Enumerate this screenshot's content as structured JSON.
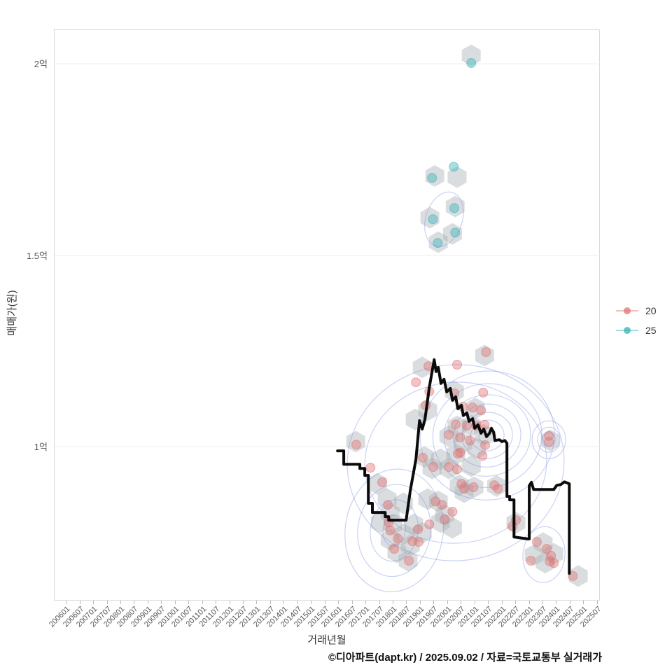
{
  "axis_titles": {
    "y": "매매가(원)",
    "x": "거래년월"
  },
  "footer": {
    "credit": "©디아파트(dapt.kr) / 2025.09.02 / 자료=국토교통부 실거래가"
  },
  "legend": {
    "items": [
      {
        "label": "20",
        "color": "#e0716f"
      },
      {
        "label": "25",
        "color": "#33b3b8"
      }
    ]
  },
  "chart_data": {
    "type": "scatter",
    "title": "",
    "xlabel": "거래년월",
    "ylabel": "매매가(원)",
    "grid": "horizontal-only",
    "legend_position": "right-middle",
    "axes": {
      "x_domain": [
        2005.56,
        2025.61
      ],
      "y_domain": [
        0.596,
        2.088
      ],
      "y_unit": "억"
    },
    "y_ticks": [
      {
        "label": "2억",
        "value": 2.0
      },
      {
        "label": "1.5억",
        "value": 1.5
      },
      {
        "label": "1억",
        "value": 1.0
      }
    ],
    "x_ticks": [
      "200601",
      "200607",
      "200701",
      "200707",
      "200801",
      "200807",
      "200901",
      "200907",
      "201001",
      "201007",
      "201101",
      "201107",
      "201201",
      "201207",
      "201301",
      "201307",
      "201401",
      "201407",
      "201501",
      "201507",
      "201601",
      "201607",
      "201701",
      "201707",
      "201801",
      "201807",
      "201901",
      "201907",
      "202001",
      "202007",
      "202101",
      "202107",
      "202201",
      "202207",
      "202301",
      "202307",
      "202401",
      "202407",
      "202501",
      "202507"
    ],
    "style": {
      "hex_color": "#a6adb3",
      "contour_color": "#8193e3",
      "line_color": "#0b0b0b",
      "grid_color": "#ededed",
      "border_color": "#d9d9d9"
    },
    "series": [
      {
        "name": "20",
        "color": "#e0716f",
        "points": [
          [
            2016.64,
            1.005
          ],
          [
            2019.29,
            1.21
          ],
          [
            2020.34,
            1.214
          ],
          [
            2021.4,
            1.247
          ],
          [
            2018.83,
            1.168
          ],
          [
            2019.32,
            1.144
          ],
          [
            2019.19,
            1.108
          ],
          [
            2020.24,
            1.139
          ],
          [
            2021.3,
            1.141
          ],
          [
            2020.55,
            1.104
          ],
          [
            2020.91,
            1.102
          ],
          [
            2021.22,
            1.095
          ],
          [
            2020.29,
            1.058
          ],
          [
            2020.7,
            1.055
          ],
          [
            2021.04,
            1.055
          ],
          [
            2021.35,
            1.057
          ],
          [
            2020.04,
            1.031
          ],
          [
            2020.45,
            1.024
          ],
          [
            2020.81,
            1.016
          ],
          [
            2021.37,
            1.004
          ],
          [
            2020.45,
            0.984
          ],
          [
            2021.27,
            0.976
          ],
          [
            2019.08,
            0.971
          ],
          [
            2020.37,
            0.982
          ],
          [
            2019.47,
            0.947
          ],
          [
            2020.04,
            0.947
          ],
          [
            2020.34,
            0.941
          ],
          [
            2020.5,
            0.903
          ],
          [
            2020.94,
            0.894
          ],
          [
            2020.6,
            0.89
          ],
          [
            2019.55,
            0.857
          ],
          [
            2019.78,
            0.848
          ],
          [
            2020.17,
            0.83
          ],
          [
            2019.88,
            0.81
          ],
          [
            2021.71,
            0.899
          ],
          [
            2021.84,
            0.89
          ],
          [
            2022.5,
            0.808
          ],
          [
            2022.38,
            0.792
          ],
          [
            2023.71,
            1.028
          ],
          [
            2023.71,
            1.013
          ],
          [
            2017.83,
            0.802
          ],
          [
            2017.88,
            0.781
          ],
          [
            2018.9,
            0.784
          ],
          [
            2018.7,
            0.753
          ],
          [
            2018.03,
            0.733
          ],
          [
            2018.57,
            0.702
          ],
          [
            2018.16,
            0.76
          ],
          [
            2017.8,
            0.848
          ],
          [
            2017.59,
            0.907
          ],
          [
            2017.16,
            0.945
          ],
          [
            2023.27,
            0.751
          ],
          [
            2023.63,
            0.733
          ],
          [
            2023.79,
            0.715
          ],
          [
            2023.74,
            0.7
          ],
          [
            2023.89,
            0.696
          ],
          [
            2023.05,
            0.702
          ],
          [
            2024.59,
            0.662
          ],
          [
            2018.93,
            0.751
          ],
          [
            2019.32,
            0.797
          ]
        ]
      },
      {
        "name": "25",
        "color": "#33b3b8",
        "points": [
          [
            2020.86,
            2.002
          ],
          [
            2020.22,
            1.731
          ],
          [
            2019.42,
            1.702
          ],
          [
            2020.24,
            1.623
          ],
          [
            2019.45,
            1.594
          ],
          [
            2020.27,
            1.559
          ],
          [
            2019.63,
            1.532
          ]
        ]
      }
    ],
    "hexbins": [
      [
        2020.86,
        2.022
      ],
      [
        2019.52,
        1.707
      ],
      [
        2020.34,
        1.704
      ],
      [
        2020.27,
        1.627
      ],
      [
        2019.34,
        1.598
      ],
      [
        2020.17,
        1.556
      ],
      [
        2019.65,
        1.534
      ],
      [
        2016.62,
        1.013
      ],
      [
        2019.06,
        1.207
      ],
      [
        2021.35,
        1.238
      ],
      [
        2020.24,
        1.144
      ],
      [
        2021.01,
        1.1
      ],
      [
        2019.26,
        1.095
      ],
      [
        2018.8,
        1.071
      ],
      [
        2020.34,
        1.053
      ],
      [
        2020.86,
        1.055
      ],
      [
        2021.32,
        1.031
      ],
      [
        2020.04,
        1.027
      ],
      [
        2020.55,
        1.009
      ],
      [
        2021.06,
        0.995
      ],
      [
        2020.29,
        0.98
      ],
      [
        2019.73,
        0.967
      ],
      [
        2019.14,
        0.973
      ],
      [
        2019.42,
        0.943
      ],
      [
        2020.04,
        0.943
      ],
      [
        2020.86,
        0.949
      ],
      [
        2020.42,
        0.899
      ],
      [
        2020.96,
        0.894
      ],
      [
        2020.6,
        0.881
      ],
      [
        2019.65,
        0.857
      ],
      [
        2019.26,
        0.863
      ],
      [
        2019.88,
        0.821
      ],
      [
        2020.17,
        0.788
      ],
      [
        2021.79,
        0.897
      ],
      [
        2022.5,
        0.801
      ],
      [
        2023.76,
        1.016
      ],
      [
        2017.41,
        0.903
      ],
      [
        2017.77,
        0.863
      ],
      [
        2018.37,
        0.852
      ],
      [
        2017.88,
        0.826
      ],
      [
        2017.52,
        0.802
      ],
      [
        2017.98,
        0.797
      ],
      [
        2018.75,
        0.797
      ],
      [
        2018.39,
        0.771
      ],
      [
        2017.88,
        0.757
      ],
      [
        2018.62,
        0.742
      ],
      [
        2018.13,
        0.724
      ],
      [
        2018.54,
        0.702
      ],
      [
        2019.73,
        0.803
      ],
      [
        2019.06,
        0.775
      ],
      [
        2023.5,
        0.748
      ],
      [
        2023.89,
        0.72
      ],
      [
        2023.17,
        0.717
      ],
      [
        2023.58,
        0.697
      ],
      [
        2024.79,
        0.662
      ]
    ],
    "contours": [
      {
        "cx": 2021.45,
        "cy": 1.029,
        "rot": -12,
        "rings": [
          [
            12,
            11
          ],
          [
            24,
            22
          ],
          [
            36,
            33
          ],
          [
            48,
            45
          ],
          [
            62,
            58
          ],
          [
            78,
            74
          ],
          [
            96,
            92
          ]
        ]
      },
      {
        "cx": 2018.03,
        "cy": 0.781,
        "rot": 8,
        "rings": [
          [
            16,
            22
          ],
          [
            34,
            44
          ],
          [
            52,
            66
          ],
          [
            70,
            88
          ]
        ]
      },
      {
        "cx": 2019.86,
        "cy": 1.594,
        "rot": 18,
        "rings": [
          [
            26,
            40
          ]
        ]
      },
      {
        "cx": 2023.71,
        "cy": 1.018,
        "rot": 0,
        "rings": [
          [
            9,
            10
          ],
          [
            16,
            18
          ],
          [
            24,
            27
          ]
        ]
      },
      {
        "cx": 2023.53,
        "cy": 0.718,
        "rot": 5,
        "rings": [
          [
            30,
            40
          ]
        ]
      },
      {
        "cx": 2020.29,
        "cy": 0.958,
        "rot": -5,
        "rings": [
          [
            130,
            115
          ],
          [
            155,
            140
          ]
        ]
      }
    ],
    "price_line": [
      [
        2015.95,
        0.989
      ],
      [
        2016.18,
        0.989
      ],
      [
        2016.18,
        0.954
      ],
      [
        2016.77,
        0.954
      ],
      [
        2016.77,
        0.943
      ],
      [
        2016.95,
        0.943
      ],
      [
        2016.95,
        0.925
      ],
      [
        2017.08,
        0.925
      ],
      [
        2017.08,
        0.852
      ],
      [
        2017.23,
        0.852
      ],
      [
        2017.23,
        0.828
      ],
      [
        2017.7,
        0.828
      ],
      [
        2017.7,
        0.817
      ],
      [
        2017.83,
        0.817
      ],
      [
        2017.83,
        0.808
      ],
      [
        2018.47,
        0.808
      ],
      [
        2018.62,
        0.885
      ],
      [
        2018.83,
        0.967
      ],
      [
        2018.96,
        1.068
      ],
      [
        2019.06,
        1.046
      ],
      [
        2019.16,
        1.071
      ],
      [
        2019.32,
        1.155
      ],
      [
        2019.5,
        1.227
      ],
      [
        2019.57,
        1.196
      ],
      [
        2019.65,
        1.207
      ],
      [
        2019.75,
        1.165
      ],
      [
        2019.86,
        1.176
      ],
      [
        2019.96,
        1.143
      ],
      [
        2020.09,
        1.152
      ],
      [
        2020.17,
        1.121
      ],
      [
        2020.29,
        1.13
      ],
      [
        2020.37,
        1.099
      ],
      [
        2020.5,
        1.108
      ],
      [
        2020.57,
        1.081
      ],
      [
        2020.7,
        1.088
      ],
      [
        2020.78,
        1.066
      ],
      [
        2020.91,
        1.073
      ],
      [
        2020.99,
        1.048
      ],
      [
        2021.11,
        1.057
      ],
      [
        2021.22,
        1.035
      ],
      [
        2021.32,
        1.046
      ],
      [
        2021.42,
        1.026
      ],
      [
        2021.53,
        1.035
      ],
      [
        2021.6,
        1.048
      ],
      [
        2021.68,
        1.038
      ],
      [
        2021.73,
        1.016
      ],
      [
        2021.89,
        1.018
      ],
      [
        2021.99,
        1.013
      ],
      [
        2022.09,
        1.016
      ],
      [
        2022.17,
        1.009
      ],
      [
        2022.17,
        0.87
      ],
      [
        2022.27,
        0.87
      ],
      [
        2022.27,
        0.861
      ],
      [
        2022.43,
        0.861
      ],
      [
        2022.43,
        0.764
      ],
      [
        2022.94,
        0.759
      ],
      [
        2022.99,
        0.759
      ],
      [
        2022.99,
        0.898
      ],
      [
        2023.07,
        0.907
      ],
      [
        2023.15,
        0.888
      ],
      [
        2023.89,
        0.888
      ],
      [
        2024.0,
        0.899
      ],
      [
        2024.15,
        0.901
      ],
      [
        2024.28,
        0.908
      ],
      [
        2024.46,
        0.903
      ],
      [
        2024.46,
        0.669
      ]
    ]
  }
}
